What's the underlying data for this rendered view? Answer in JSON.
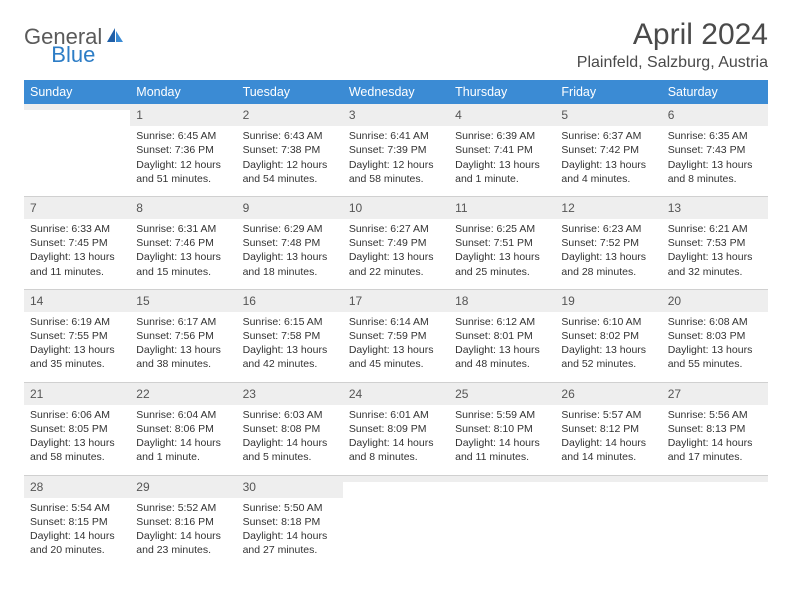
{
  "logo": {
    "general": "General",
    "blue": "Blue"
  },
  "title": "April 2024",
  "location": "Plainfeld, Salzburg, Austria",
  "colors": {
    "header_bg": "#3b8bd4",
    "header_fg": "#ffffff",
    "daynum_bg": "#eeeeee",
    "text": "#333333",
    "logo_gray": "#5a5a5a",
    "logo_blue": "#2d7dc6"
  },
  "weekdays": [
    "Sunday",
    "Monday",
    "Tuesday",
    "Wednesday",
    "Thursday",
    "Friday",
    "Saturday"
  ],
  "weeks": [
    [
      {
        "n": "",
        "sr": "",
        "ss": "",
        "dl": ""
      },
      {
        "n": "1",
        "sr": "Sunrise: 6:45 AM",
        "ss": "Sunset: 7:36 PM",
        "dl": "Daylight: 12 hours and 51 minutes."
      },
      {
        "n": "2",
        "sr": "Sunrise: 6:43 AM",
        "ss": "Sunset: 7:38 PM",
        "dl": "Daylight: 12 hours and 54 minutes."
      },
      {
        "n": "3",
        "sr": "Sunrise: 6:41 AM",
        "ss": "Sunset: 7:39 PM",
        "dl": "Daylight: 12 hours and 58 minutes."
      },
      {
        "n": "4",
        "sr": "Sunrise: 6:39 AM",
        "ss": "Sunset: 7:41 PM",
        "dl": "Daylight: 13 hours and 1 minute."
      },
      {
        "n": "5",
        "sr": "Sunrise: 6:37 AM",
        "ss": "Sunset: 7:42 PM",
        "dl": "Daylight: 13 hours and 4 minutes."
      },
      {
        "n": "6",
        "sr": "Sunrise: 6:35 AM",
        "ss": "Sunset: 7:43 PM",
        "dl": "Daylight: 13 hours and 8 minutes."
      }
    ],
    [
      {
        "n": "7",
        "sr": "Sunrise: 6:33 AM",
        "ss": "Sunset: 7:45 PM",
        "dl": "Daylight: 13 hours and 11 minutes."
      },
      {
        "n": "8",
        "sr": "Sunrise: 6:31 AM",
        "ss": "Sunset: 7:46 PM",
        "dl": "Daylight: 13 hours and 15 minutes."
      },
      {
        "n": "9",
        "sr": "Sunrise: 6:29 AM",
        "ss": "Sunset: 7:48 PM",
        "dl": "Daylight: 13 hours and 18 minutes."
      },
      {
        "n": "10",
        "sr": "Sunrise: 6:27 AM",
        "ss": "Sunset: 7:49 PM",
        "dl": "Daylight: 13 hours and 22 minutes."
      },
      {
        "n": "11",
        "sr": "Sunrise: 6:25 AM",
        "ss": "Sunset: 7:51 PM",
        "dl": "Daylight: 13 hours and 25 minutes."
      },
      {
        "n": "12",
        "sr": "Sunrise: 6:23 AM",
        "ss": "Sunset: 7:52 PM",
        "dl": "Daylight: 13 hours and 28 minutes."
      },
      {
        "n": "13",
        "sr": "Sunrise: 6:21 AM",
        "ss": "Sunset: 7:53 PM",
        "dl": "Daylight: 13 hours and 32 minutes."
      }
    ],
    [
      {
        "n": "14",
        "sr": "Sunrise: 6:19 AM",
        "ss": "Sunset: 7:55 PM",
        "dl": "Daylight: 13 hours and 35 minutes."
      },
      {
        "n": "15",
        "sr": "Sunrise: 6:17 AM",
        "ss": "Sunset: 7:56 PM",
        "dl": "Daylight: 13 hours and 38 minutes."
      },
      {
        "n": "16",
        "sr": "Sunrise: 6:15 AM",
        "ss": "Sunset: 7:58 PM",
        "dl": "Daylight: 13 hours and 42 minutes."
      },
      {
        "n": "17",
        "sr": "Sunrise: 6:14 AM",
        "ss": "Sunset: 7:59 PM",
        "dl": "Daylight: 13 hours and 45 minutes."
      },
      {
        "n": "18",
        "sr": "Sunrise: 6:12 AM",
        "ss": "Sunset: 8:01 PM",
        "dl": "Daylight: 13 hours and 48 minutes."
      },
      {
        "n": "19",
        "sr": "Sunrise: 6:10 AM",
        "ss": "Sunset: 8:02 PM",
        "dl": "Daylight: 13 hours and 52 minutes."
      },
      {
        "n": "20",
        "sr": "Sunrise: 6:08 AM",
        "ss": "Sunset: 8:03 PM",
        "dl": "Daylight: 13 hours and 55 minutes."
      }
    ],
    [
      {
        "n": "21",
        "sr": "Sunrise: 6:06 AM",
        "ss": "Sunset: 8:05 PM",
        "dl": "Daylight: 13 hours and 58 minutes."
      },
      {
        "n": "22",
        "sr": "Sunrise: 6:04 AM",
        "ss": "Sunset: 8:06 PM",
        "dl": "Daylight: 14 hours and 1 minute."
      },
      {
        "n": "23",
        "sr": "Sunrise: 6:03 AM",
        "ss": "Sunset: 8:08 PM",
        "dl": "Daylight: 14 hours and 5 minutes."
      },
      {
        "n": "24",
        "sr": "Sunrise: 6:01 AM",
        "ss": "Sunset: 8:09 PM",
        "dl": "Daylight: 14 hours and 8 minutes."
      },
      {
        "n": "25",
        "sr": "Sunrise: 5:59 AM",
        "ss": "Sunset: 8:10 PM",
        "dl": "Daylight: 14 hours and 11 minutes."
      },
      {
        "n": "26",
        "sr": "Sunrise: 5:57 AM",
        "ss": "Sunset: 8:12 PM",
        "dl": "Daylight: 14 hours and 14 minutes."
      },
      {
        "n": "27",
        "sr": "Sunrise: 5:56 AM",
        "ss": "Sunset: 8:13 PM",
        "dl": "Daylight: 14 hours and 17 minutes."
      }
    ],
    [
      {
        "n": "28",
        "sr": "Sunrise: 5:54 AM",
        "ss": "Sunset: 8:15 PM",
        "dl": "Daylight: 14 hours and 20 minutes."
      },
      {
        "n": "29",
        "sr": "Sunrise: 5:52 AM",
        "ss": "Sunset: 8:16 PM",
        "dl": "Daylight: 14 hours and 23 minutes."
      },
      {
        "n": "30",
        "sr": "Sunrise: 5:50 AM",
        "ss": "Sunset: 8:18 PM",
        "dl": "Daylight: 14 hours and 27 minutes."
      },
      {
        "n": "",
        "sr": "",
        "ss": "",
        "dl": ""
      },
      {
        "n": "",
        "sr": "",
        "ss": "",
        "dl": ""
      },
      {
        "n": "",
        "sr": "",
        "ss": "",
        "dl": ""
      },
      {
        "n": "",
        "sr": "",
        "ss": "",
        "dl": ""
      }
    ]
  ]
}
